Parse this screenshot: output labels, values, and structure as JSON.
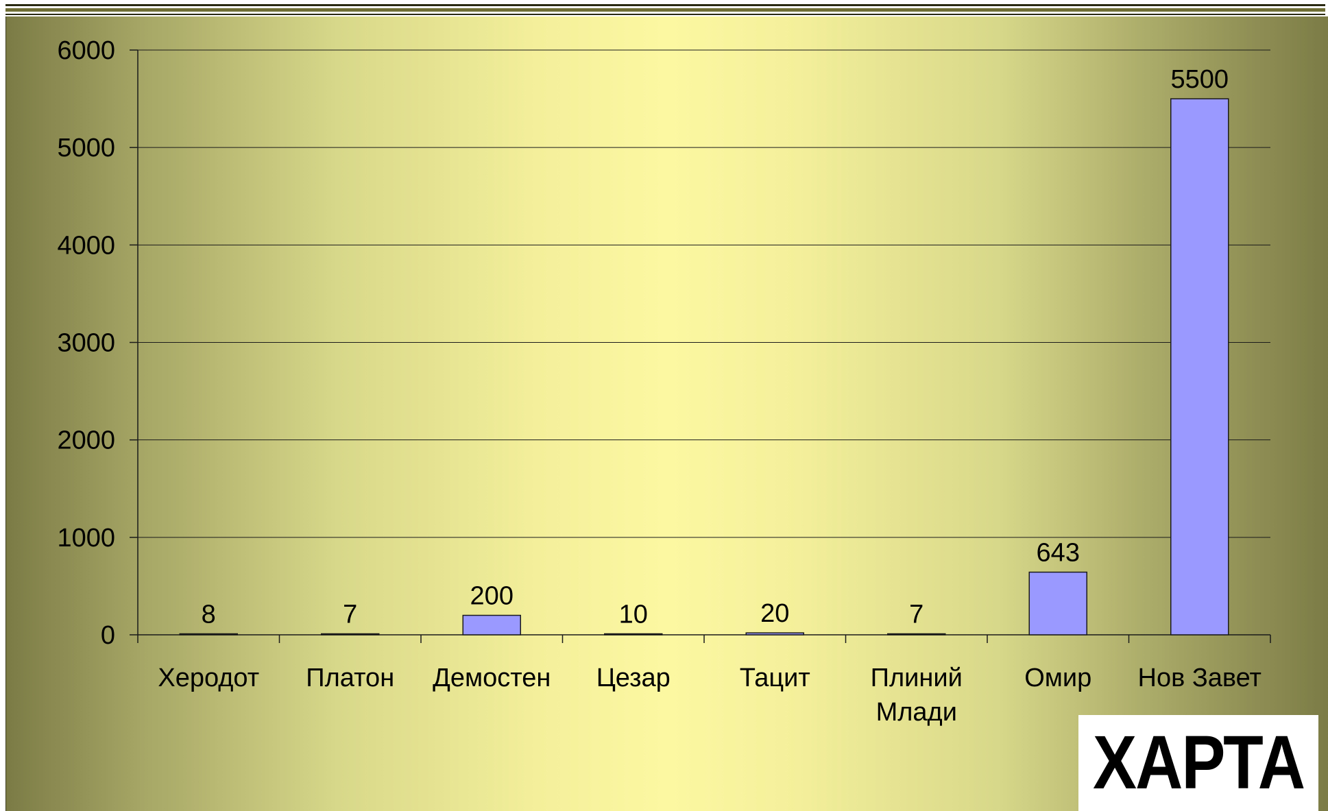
{
  "chart_data": {
    "type": "bar",
    "categories": [
      "Херодот",
      "Платон",
      "Демостен",
      "Цезар",
      "Тацит",
      "Плиний Млади",
      "Омир",
      "Нов Завет"
    ],
    "values": [
      8,
      7,
      200,
      10,
      20,
      7,
      643,
      5500
    ],
    "data_labels": [
      "8",
      "7",
      "200",
      "10",
      "20",
      "7",
      "643",
      "5500"
    ],
    "y_ticks": [
      "0",
      "1000",
      "2000",
      "3000",
      "4000",
      "5000",
      "6000"
    ],
    "ylim": [
      0,
      6000
    ],
    "title": "",
    "xlabel": "",
    "ylabel": "",
    "grid": true,
    "legend": "none",
    "colors": {
      "bar": "#9999ff",
      "bar_stroke": "#1a1a1a",
      "gridline": "#1a1a1a"
    }
  },
  "stamp": {
    "text": "ХАРТА"
  }
}
